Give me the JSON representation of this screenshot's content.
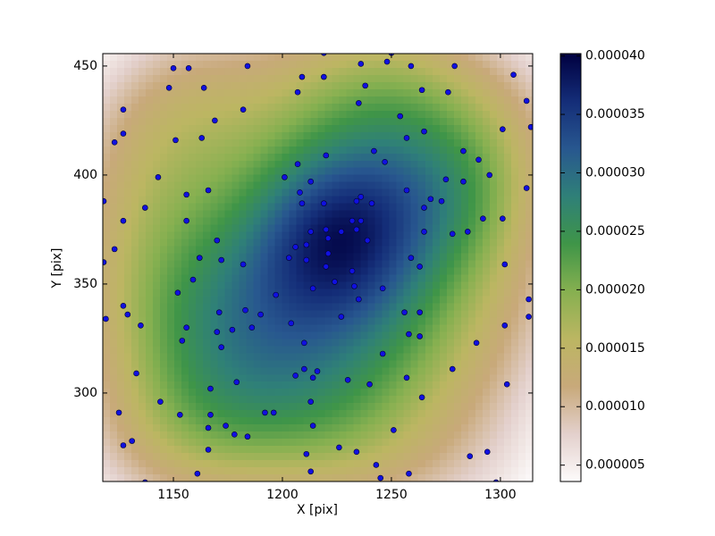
{
  "chart_data": {
    "type": "scatter",
    "xlabel": "X [pix]",
    "ylabel": "Y [pix]",
    "xlim": [
      1117.6,
      1314.8
    ],
    "ylim": [
      259.4,
      455.7
    ],
    "xticks": [
      1150,
      1200,
      1250,
      1300
    ],
    "yticks": [
      300,
      350,
      400,
      450
    ],
    "color": "#1010e0",
    "x": [
      1219,
      1250,
      1150,
      1157,
      1184,
      1209,
      1219,
      1236,
      1248,
      1259,
      1279,
      1306,
      1148,
      1164,
      1238,
      1207,
      1264,
      1276,
      1312,
      1235,
      1127,
      1182,
      1169,
      1254,
      1314,
      1301,
      1127,
      1265,
      1123,
      1151,
      1163,
      1257,
      1242,
      1220,
      1283,
      1290,
      1247,
      1207,
      1118,
      1143,
      1201,
      1295,
      1275,
      1283,
      1213,
      1312,
      1257,
      1156,
      1166,
      1208,
      1236,
      1268,
      1273,
      1137,
      1209,
      1219,
      1234,
      1241,
      1265,
      1292,
      1301,
      1232,
      1236,
      1156,
      1127,
      1213,
      1220,
      1227,
      1234,
      1265,
      1278,
      1285,
      1221,
      1239,
      1170,
      1211,
      1206,
      1123,
      1221,
      1162,
      1172,
      1203,
      1259,
      1211,
      1263,
      1302,
      1182,
      1220,
      1232,
      1159,
      1118,
      1224,
      1214,
      1233,
      1246,
      1152,
      1313,
      1197,
      1235,
      1183,
      1127,
      1171,
      1256,
      1263,
      1190,
      1119,
      1129,
      1227,
      1313,
      1204,
      1135,
      1186,
      1302,
      1156,
      1170,
      1177,
      1258,
      1263,
      1154,
      1210,
      1289,
      1172,
      1246,
      1216,
      1210,
      1278,
      1133,
      1206,
      1214,
      1179,
      1230,
      1257,
      1240,
      1303,
      1167,
      1192,
      1196,
      1125,
      1153,
      1167,
      1264,
      1144,
      1213,
      1174,
      1166,
      1178,
      1184,
      1214,
      1251,
      1131,
      1127,
      1166,
      1226,
      1234,
      1211,
      1286,
      1294,
      1243,
      1213,
      1161,
      1258,
      1245,
      1137,
      1298
    ],
    "y": [
      456,
      456,
      449,
      449,
      450,
      445,
      445,
      451,
      452,
      450,
      450,
      446,
      440,
      440,
      441,
      438,
      439,
      438,
      434,
      433,
      430,
      430,
      425,
      427,
      422,
      421,
      419,
      420,
      415,
      416,
      417,
      417,
      411,
      409,
      411,
      407,
      406,
      405,
      388,
      399,
      399,
      400,
      398,
      397,
      397,
      394,
      393,
      391,
      393,
      392,
      390,
      389,
      388,
      385,
      387,
      387,
      388,
      387,
      385,
      380,
      380,
      379,
      379,
      379,
      379,
      374,
      375,
      374,
      375,
      374,
      373,
      374,
      371,
      370,
      370,
      368,
      367,
      366,
      364,
      362,
      361,
      362,
      362,
      361,
      358,
      359,
      359,
      358,
      356,
      352,
      360,
      351,
      348,
      349,
      348,
      346,
      343,
      345,
      343,
      338,
      340,
      337,
      337,
      337,
      336,
      334,
      336,
      335,
      335,
      332,
      331,
      330,
      331,
      330,
      328,
      329,
      327,
      326,
      324,
      323,
      323,
      321,
      318,
      310,
      311,
      311,
      309,
      308,
      307,
      305,
      306,
      307,
      304,
      304,
      302,
      291,
      291,
      291,
      290,
      290,
      298,
      296,
      296,
      285,
      284,
      281,
      280,
      285,
      283,
      278,
      276,
      274,
      275,
      273,
      272,
      271,
      273,
      267,
      264,
      263,
      263,
      261,
      259,
      259
    ],
    "colorbar": {
      "clim": [
        3.6e-06,
        4.02e-05
      ],
      "ticks": [
        {
          "value": 5e-06,
          "label": "0.000005"
        },
        {
          "value": 1e-05,
          "label": "0.000010"
        },
        {
          "value": 1.5e-05,
          "label": "0.000015"
        },
        {
          "value": 2e-05,
          "label": "0.000020"
        },
        {
          "value": 2.5e-05,
          "label": "0.000025"
        },
        {
          "value": 3e-05,
          "label": "0.000030"
        },
        {
          "value": 3.5e-05,
          "label": "0.000035"
        },
        {
          "value": 4e-05,
          "label": "0.000040"
        }
      ],
      "colormap": [
        "#fdfbfb",
        "#e3d0cc",
        "#c8a97a",
        "#bcb662",
        "#86b050",
        "#3f9548",
        "#2f8078",
        "#28578f",
        "#142d78",
        "#000040"
      ]
    }
  }
}
